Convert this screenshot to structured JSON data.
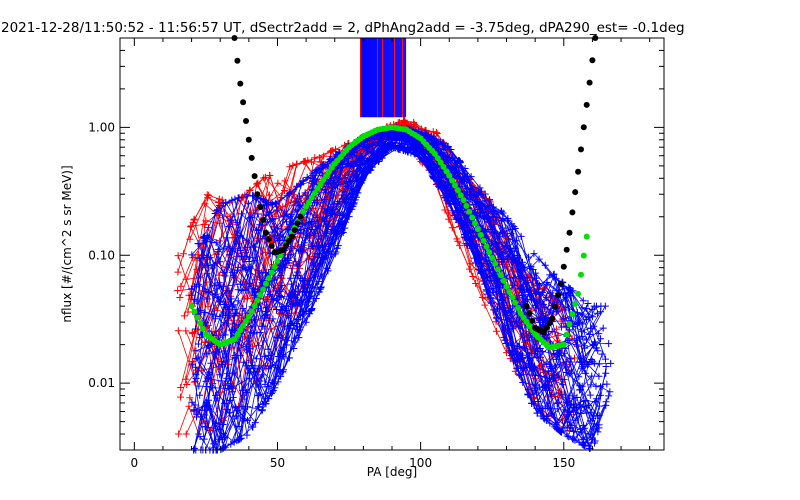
{
  "chart_data": {
    "type": "line",
    "title": "2021-12-28/11:50:52 - 11:56:57 UT, dSectr2add = 2, dPhAng2add = -3.75deg, dPA290_est=  -0.1deg",
    "xlabel": "PA [deg]",
    "ylabel": "nflux [#/(cm^2 s sr MeV)]",
    "xlim": [
      -5,
      185
    ],
    "ylim": [
      0.003,
      5
    ],
    "y_scale": "log",
    "grid": false,
    "x_ticks": [
      0,
      50,
      100,
      150
    ],
    "x_tick_labels": [
      "0",
      "50",
      "100",
      "150"
    ],
    "y_ticks": [
      0.01,
      0.1,
      1.0
    ],
    "y_tick_labels": [
      "0.01",
      "0.10",
      "1.00"
    ],
    "series": [
      {
        "color": "#ff0000",
        "style": "line-with-plus-markers",
        "envelope_pa": [
          15,
          25,
          35,
          45,
          55,
          65,
          75,
          85,
          95,
          105,
          115,
          125,
          135,
          145,
          155
        ],
        "envelope_low": [
          0.004,
          0.004,
          0.006,
          0.012,
          0.03,
          0.09,
          0.35,
          0.8,
          0.85,
          0.35,
          0.1,
          0.03,
          0.01,
          0.005,
          0.004
        ],
        "envelope_high": [
          0.1,
          0.3,
          0.25,
          0.4,
          0.5,
          0.6,
          0.75,
          0.95,
          1.15,
          0.95,
          0.45,
          0.25,
          0.08,
          0.05,
          0.03
        ]
      },
      {
        "color": "#0000ff",
        "style": "line-with-plus-markers",
        "envelope_pa": [
          20,
          30,
          40,
          50,
          60,
          70,
          80,
          90,
          100,
          110,
          120,
          130,
          140,
          150,
          160,
          167
        ],
        "envelope_low": [
          0.003,
          0.003,
          0.004,
          0.01,
          0.03,
          0.1,
          0.4,
          0.7,
          0.6,
          0.25,
          0.08,
          0.02,
          0.006,
          0.004,
          0.003,
          0.01
        ],
        "envelope_high": [
          0.1,
          0.25,
          0.3,
          0.25,
          0.4,
          0.6,
          0.85,
          1.0,
          0.95,
          0.7,
          0.35,
          0.2,
          0.1,
          0.06,
          0.04,
          0.04
        ]
      },
      {
        "color": "#00e000",
        "style": "thick-dotted-fit",
        "x": [
          20,
          25,
          30,
          35,
          40,
          45,
          50,
          55,
          60,
          65,
          70,
          75,
          80,
          85,
          90,
          95,
          100,
          105,
          110,
          115,
          120,
          125,
          130,
          135,
          140,
          145,
          150,
          155,
          158
        ],
        "y": [
          0.04,
          0.024,
          0.02,
          0.022,
          0.033,
          0.054,
          0.09,
          0.15,
          0.24,
          0.36,
          0.52,
          0.7,
          0.85,
          0.96,
          1.0,
          0.96,
          0.82,
          0.62,
          0.42,
          0.27,
          0.16,
          0.095,
          0.057,
          0.035,
          0.024,
          0.019,
          0.02,
          0.05,
          0.14
        ]
      },
      {
        "color": "#000000",
        "style": "thick-dotted-fit",
        "x": [
          35,
          37,
          40,
          43,
          46,
          49,
          52,
          55,
          58
        ],
        "y": [
          5,
          2.2,
          0.8,
          0.3,
          0.15,
          0.105,
          0.11,
          0.14,
          0.2
        ],
        "x2": [
          137,
          140,
          143,
          146,
          149,
          152,
          155,
          158,
          161
        ],
        "y2": [
          0.04,
          0.027,
          0.025,
          0.032,
          0.06,
          0.15,
          0.45,
          1.5,
          5
        ]
      }
    ],
    "spike_band": {
      "x_range": [
        79,
        95
      ],
      "y_range": [
        1.2,
        5
      ],
      "colors": [
        "#0000ff",
        "#ff0000"
      ]
    }
  }
}
